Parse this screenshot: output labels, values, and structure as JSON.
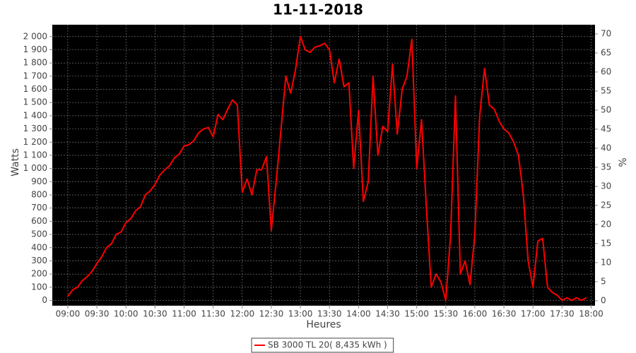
{
  "chart_data": {
    "type": "line",
    "title": "11-11-2018",
    "x_label": "Heures",
    "y_label": "Watts",
    "y2_label": "%",
    "x": [
      "09:00",
      "09:05",
      "09:10",
      "09:15",
      "09:20",
      "09:25",
      "09:30",
      "09:35",
      "09:40",
      "09:45",
      "09:50",
      "09:55",
      "10:00",
      "10:05",
      "10:10",
      "10:15",
      "10:20",
      "10:25",
      "10:30",
      "10:35",
      "10:40",
      "10:45",
      "10:50",
      "10:55",
      "11:00",
      "11:05",
      "11:10",
      "11:15",
      "11:20",
      "11:25",
      "11:30",
      "11:35",
      "11:40",
      "11:45",
      "11:50",
      "11:55",
      "12:00",
      "12:05",
      "12:10",
      "12:15",
      "12:20",
      "12:25",
      "12:30",
      "12:35",
      "12:40",
      "12:45",
      "12:50",
      "12:55",
      "13:00",
      "13:05",
      "13:10",
      "13:15",
      "13:20",
      "13:25",
      "13:30",
      "13:35",
      "13:40",
      "13:45",
      "13:50",
      "13:55",
      "14:00",
      "14:05",
      "14:10",
      "14:15",
      "14:20",
      "14:25",
      "14:30",
      "14:35",
      "14:40",
      "14:45",
      "14:50",
      "14:55",
      "15:00",
      "15:05",
      "15:10",
      "15:15",
      "15:20",
      "15:25",
      "15:30",
      "15:35",
      "15:40",
      "15:45",
      "15:50",
      "15:55",
      "16:00",
      "16:05",
      "16:10",
      "16:15",
      "16:20",
      "16:25",
      "16:30",
      "16:35",
      "16:40",
      "16:45",
      "16:50",
      "16:55",
      "17:00",
      "17:05",
      "17:10",
      "17:15",
      "17:20",
      "17:25",
      "17:30",
      "17:35",
      "17:40",
      "17:45",
      "17:50",
      "17:55"
    ],
    "series": [
      {
        "name": "SB 3000 TL 20( 8,435 kWh )",
        "color": "#ff0000",
        "values": [
          30,
          80,
          100,
          150,
          180,
          220,
          280,
          330,
          400,
          430,
          500,
          520,
          590,
          620,
          680,
          710,
          800,
          830,
          880,
          950,
          990,
          1020,
          1080,
          1110,
          1170,
          1180,
          1210,
          1270,
          1300,
          1310,
          1240,
          1410,
          1370,
          1450,
          1520,
          1480,
          820,
          920,
          800,
          990,
          990,
          1090,
          530,
          900,
          1300,
          1700,
          1570,
          1750,
          2000,
          1900,
          1880,
          1920,
          1930,
          1950,
          1900,
          1650,
          1830,
          1620,
          1650,
          1000,
          1440,
          750,
          900,
          1700,
          1100,
          1320,
          1280,
          1790,
          1260,
          1600,
          1700,
          1980,
          1000,
          1370,
          700,
          100,
          200,
          140,
          0,
          500,
          1550,
          200,
          300,
          120,
          500,
          1400,
          1760,
          1480,
          1450,
          1360,
          1300,
          1270,
          1200,
          1100,
          800,
          300,
          100,
          450,
          470,
          100,
          60,
          40,
          0,
          20,
          0,
          20,
          0,
          20
        ]
      }
    ],
    "xlim": [
      "08:44",
      "18:04"
    ],
    "xticks": [
      "09:00",
      "09:30",
      "10:00",
      "10:30",
      "11:00",
      "11:30",
      "12:00",
      "12:30",
      "13:00",
      "13:30",
      "14:00",
      "14:30",
      "15:00",
      "15:30",
      "16:00",
      "16:30",
      "17:00",
      "17:30",
      "18:00"
    ],
    "ylim": [
      -40,
      2090
    ],
    "yticks": [
      0,
      100,
      200,
      300,
      400,
      500,
      600,
      700,
      800,
      900,
      {
        "value": 1000,
        "label": "1 000"
      },
      {
        "value": 1100,
        "label": "1 100"
      },
      {
        "value": 1200,
        "label": "1 200"
      },
      {
        "value": 1300,
        "label": "1 300"
      },
      {
        "value": 1400,
        "label": "1 400"
      },
      {
        "value": 1500,
        "label": "1 500"
      },
      {
        "value": 1600,
        "label": "1 600"
      },
      {
        "value": 1700,
        "label": "1 700"
      },
      {
        "value": 1800,
        "label": "1 800"
      },
      {
        "value": 1900,
        "label": "1 900"
      },
      {
        "value": 2000,
        "label": "2 000"
      }
    ],
    "y2lim": [
      -1.3,
      72.4
    ],
    "y2ticks": [
      0,
      5,
      10,
      15,
      20,
      25,
      30,
      35,
      40,
      45,
      50,
      55,
      60,
      65,
      70
    ],
    "grid": true,
    "plot_background": "#000000"
  }
}
